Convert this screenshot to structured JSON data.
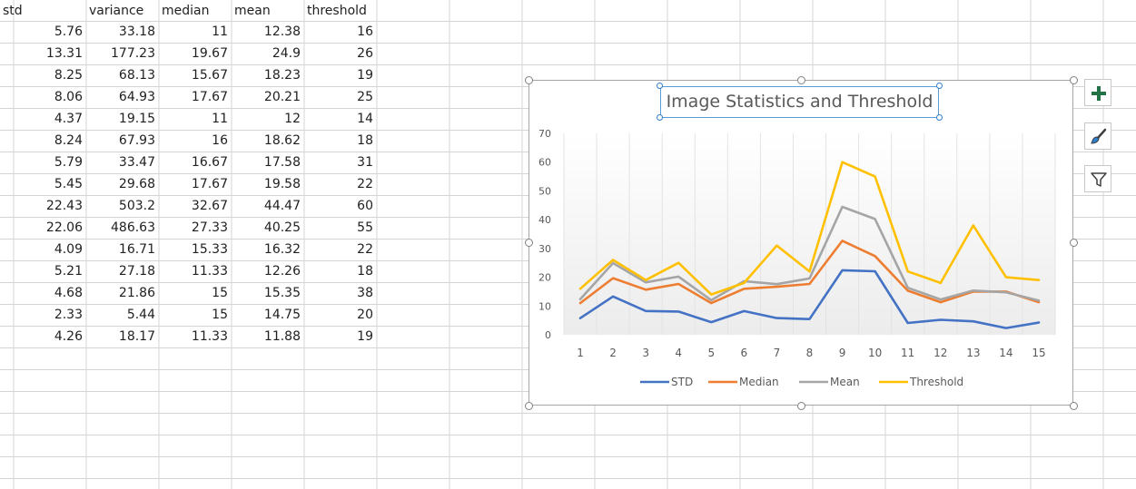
{
  "sheet": {
    "headers": [
      "std",
      "variance",
      "median",
      "mean",
      "threshold"
    ],
    "rows": [
      [
        "5.76",
        "33.18",
        "11",
        "12.38",
        "16"
      ],
      [
        "13.31",
        "177.23",
        "19.67",
        "24.9",
        "26"
      ],
      [
        "8.25",
        "68.13",
        "15.67",
        "18.23",
        "19"
      ],
      [
        "8.06",
        "64.93",
        "17.67",
        "20.21",
        "25"
      ],
      [
        "4.37",
        "19.15",
        "11",
        "12",
        "14"
      ],
      [
        "8.24",
        "67.93",
        "16",
        "18.62",
        "18"
      ],
      [
        "5.79",
        "33.47",
        "16.67",
        "17.58",
        "31"
      ],
      [
        "5.45",
        "29.68",
        "17.67",
        "19.58",
        "22"
      ],
      [
        "22.43",
        "503.2",
        "32.67",
        "44.47",
        "60"
      ],
      [
        "22.06",
        "486.63",
        "27.33",
        "40.25",
        "55"
      ],
      [
        "4.09",
        "16.71",
        "15.33",
        "16.32",
        "22"
      ],
      [
        "5.21",
        "27.18",
        "11.33",
        "12.26",
        "18"
      ],
      [
        "4.68",
        "21.86",
        "15",
        "15.35",
        "38"
      ],
      [
        "2.33",
        "5.44",
        "15",
        "14.75",
        "20"
      ],
      [
        "4.26",
        "18.17",
        "11.33",
        "11.88",
        "19"
      ]
    ]
  },
  "chart_tools": [
    {
      "icon": "plus-icon",
      "color": "#217346"
    },
    {
      "icon": "paintbrush-icon",
      "color": "#404040"
    },
    {
      "icon": "funnel-icon",
      "color": "#404040"
    }
  ],
  "chart_data": {
    "type": "line",
    "title": "Image Statistics and Threshold",
    "categories": [
      "1",
      "2",
      "3",
      "4",
      "5",
      "6",
      "7",
      "8",
      "9",
      "10",
      "11",
      "12",
      "13",
      "14",
      "15"
    ],
    "ylim": [
      0,
      70
    ],
    "yticks": [
      "0",
      "10",
      "20",
      "30",
      "40",
      "50",
      "60",
      "70"
    ],
    "grid": "vertical",
    "legend": "bottom",
    "series": [
      {
        "name": "STD",
        "color": "#4472c4",
        "values": [
          5.76,
          13.31,
          8.25,
          8.06,
          4.37,
          8.24,
          5.79,
          5.45,
          22.43,
          22.06,
          4.09,
          5.21,
          4.68,
          2.33,
          4.26
        ]
      },
      {
        "name": "Median",
        "color": "#ed7d31",
        "values": [
          11,
          19.67,
          15.67,
          17.67,
          11,
          16,
          16.67,
          17.67,
          32.67,
          27.33,
          15.33,
          11.33,
          15,
          15,
          11.33
        ]
      },
      {
        "name": "Mean",
        "color": "#a5a5a5",
        "values": [
          12.38,
          24.9,
          18.23,
          20.21,
          12,
          18.62,
          17.58,
          19.58,
          44.47,
          40.25,
          16.32,
          12.26,
          15.35,
          14.75,
          11.88
        ]
      },
      {
        "name": "Threshold",
        "color": "#ffc000",
        "values": [
          16,
          26,
          19,
          25,
          14,
          18,
          31,
          22,
          60,
          55,
          22,
          18,
          38,
          20,
          19
        ]
      }
    ]
  }
}
